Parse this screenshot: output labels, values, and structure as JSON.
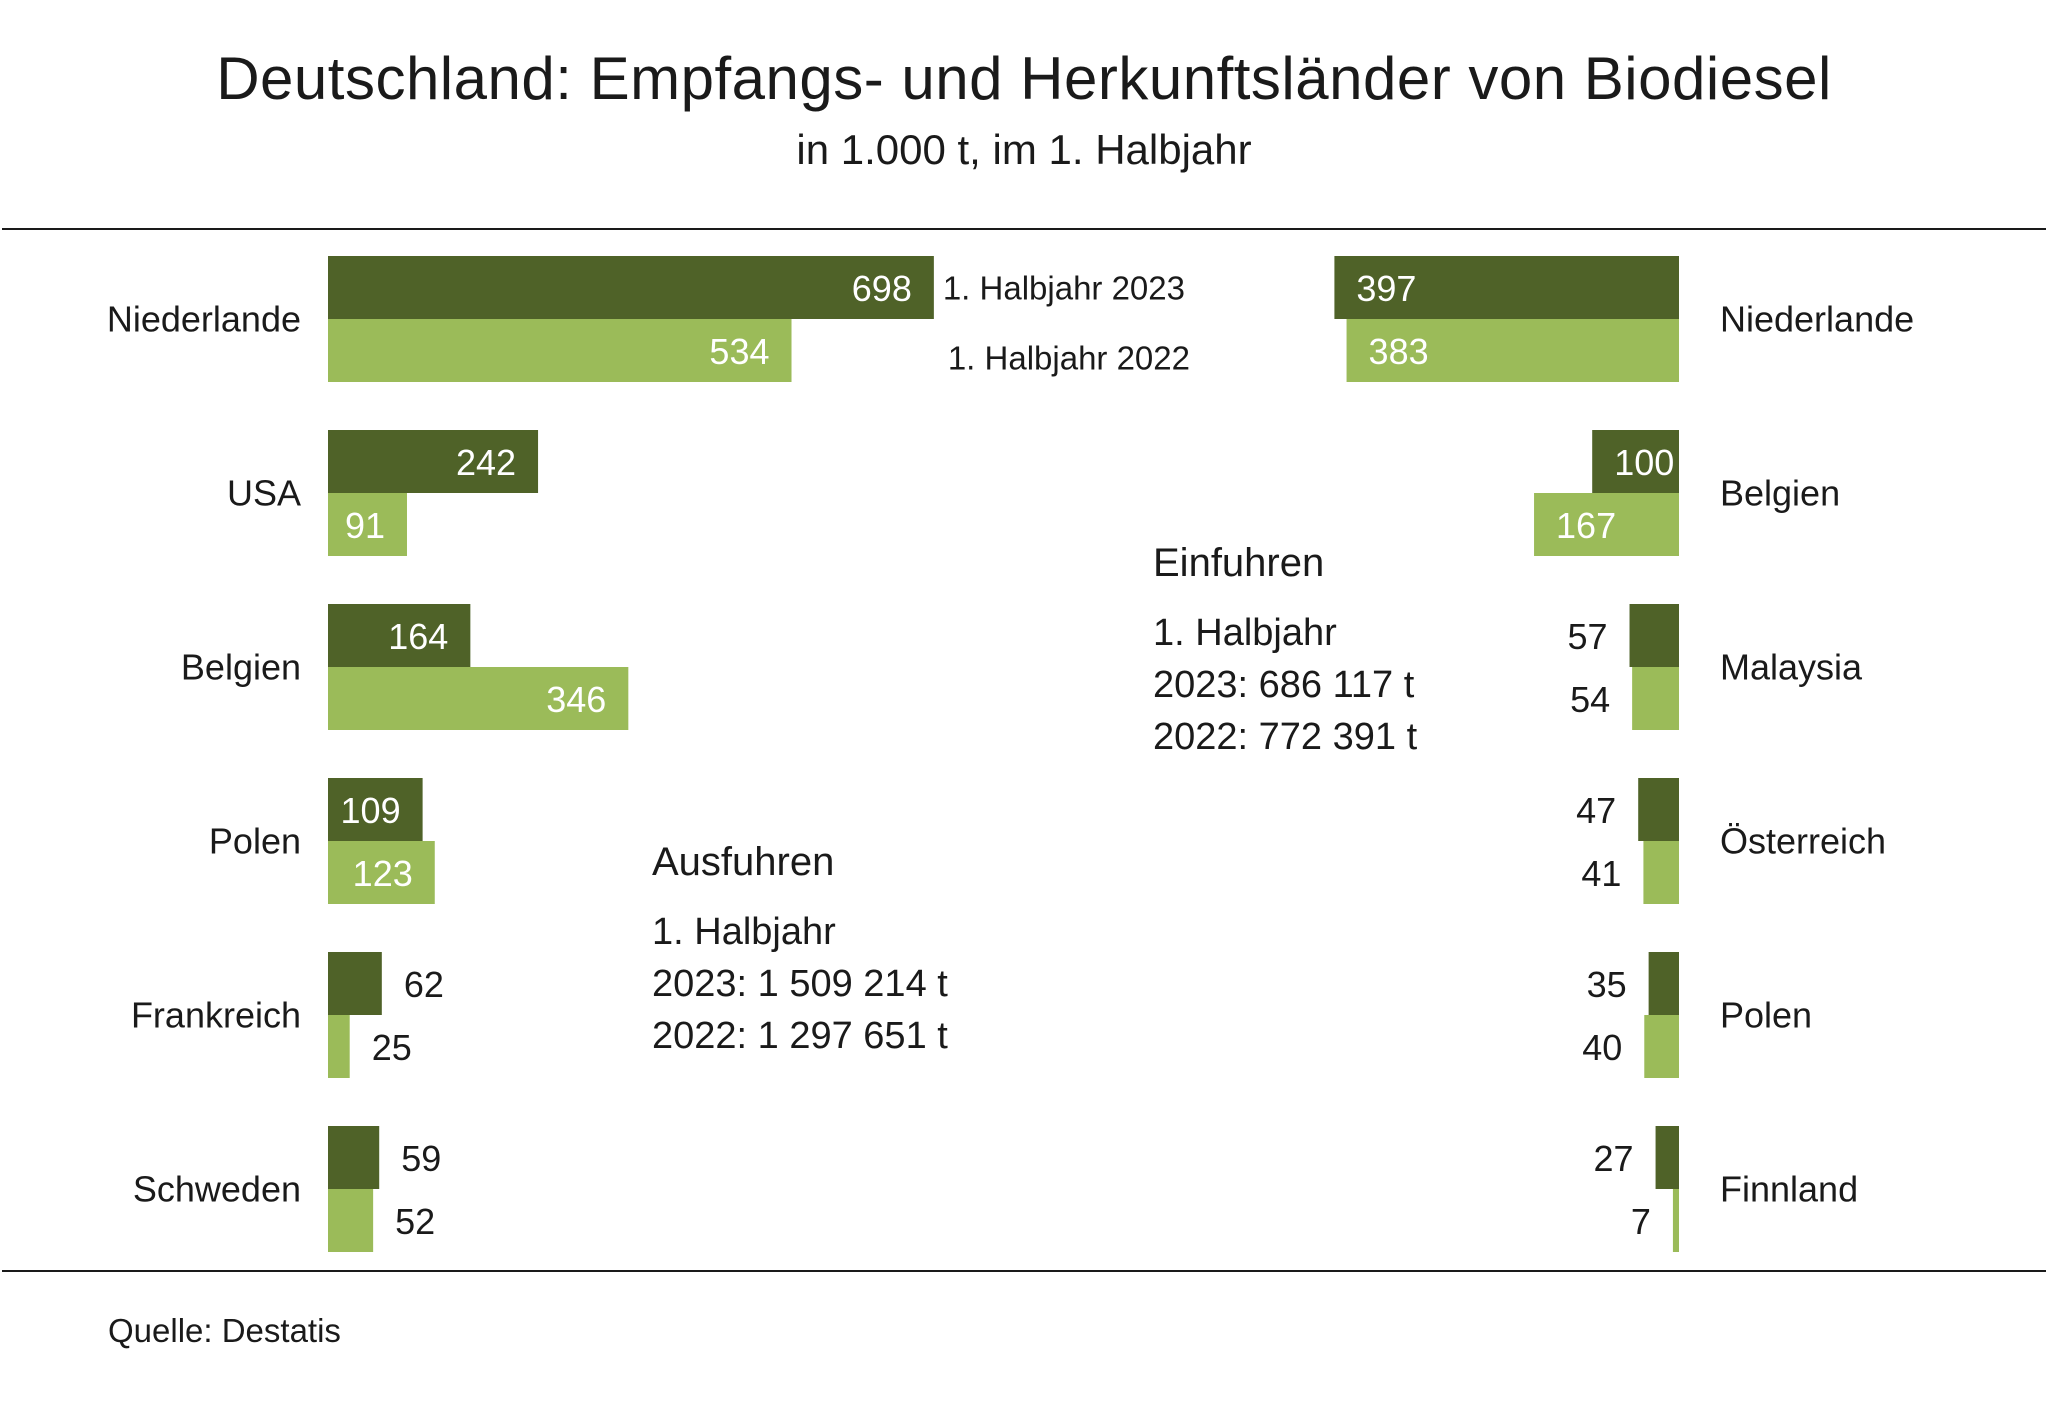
{
  "title": "Deutschland: Empfangs- und Herkunftsländer von Biodiesel",
  "subtitle": "in 1.000 t, im 1. Halbjahr",
  "source": "Quelle:  Destatis",
  "colors": {
    "y2023": "#4f6228",
    "y2022": "#9bbb59",
    "text": "#1a1a1a",
    "white": "#ffffff"
  },
  "chart_data": [
    {
      "type": "bar",
      "orientation": "horizontal",
      "side": "left",
      "categories": [
        "Niederlande",
        "USA",
        "Belgien",
        "Polen",
        "Frankreich",
        "Schweden"
      ],
      "series": [
        {
          "name": "1. Halbjahr 2023",
          "values": [
            698,
            242,
            164,
            109,
            62,
            59
          ]
        },
        {
          "name": "1. Halbjahr 2022",
          "values": [
            534,
            91,
            346,
            123,
            25,
            52
          ]
        }
      ],
      "summary": {
        "heading": "Ausfuhren",
        "lines": [
          "1. Halbjahr",
          "2023: 1 509 214 t",
          "2022: 1 297 651 t"
        ]
      }
    },
    {
      "type": "bar",
      "orientation": "horizontal",
      "side": "right",
      "categories": [
        "Niederlande",
        "Belgien",
        "Malaysia",
        "Österreich",
        "Polen",
        "Finnland"
      ],
      "series": [
        {
          "name": "1. Halbjahr 2023",
          "values": [
            397,
            100,
            57,
            47,
            35,
            27
          ]
        },
        {
          "name": "1. Halbjahr 2022",
          "values": [
            383,
            167,
            54,
            41,
            40,
            7
          ]
        }
      ],
      "summary": {
        "heading": "Einfuhren",
        "lines": [
          "1. Halbjahr",
          "2023: 686 117 t",
          "2022: 772 391 t"
        ]
      }
    }
  ]
}
